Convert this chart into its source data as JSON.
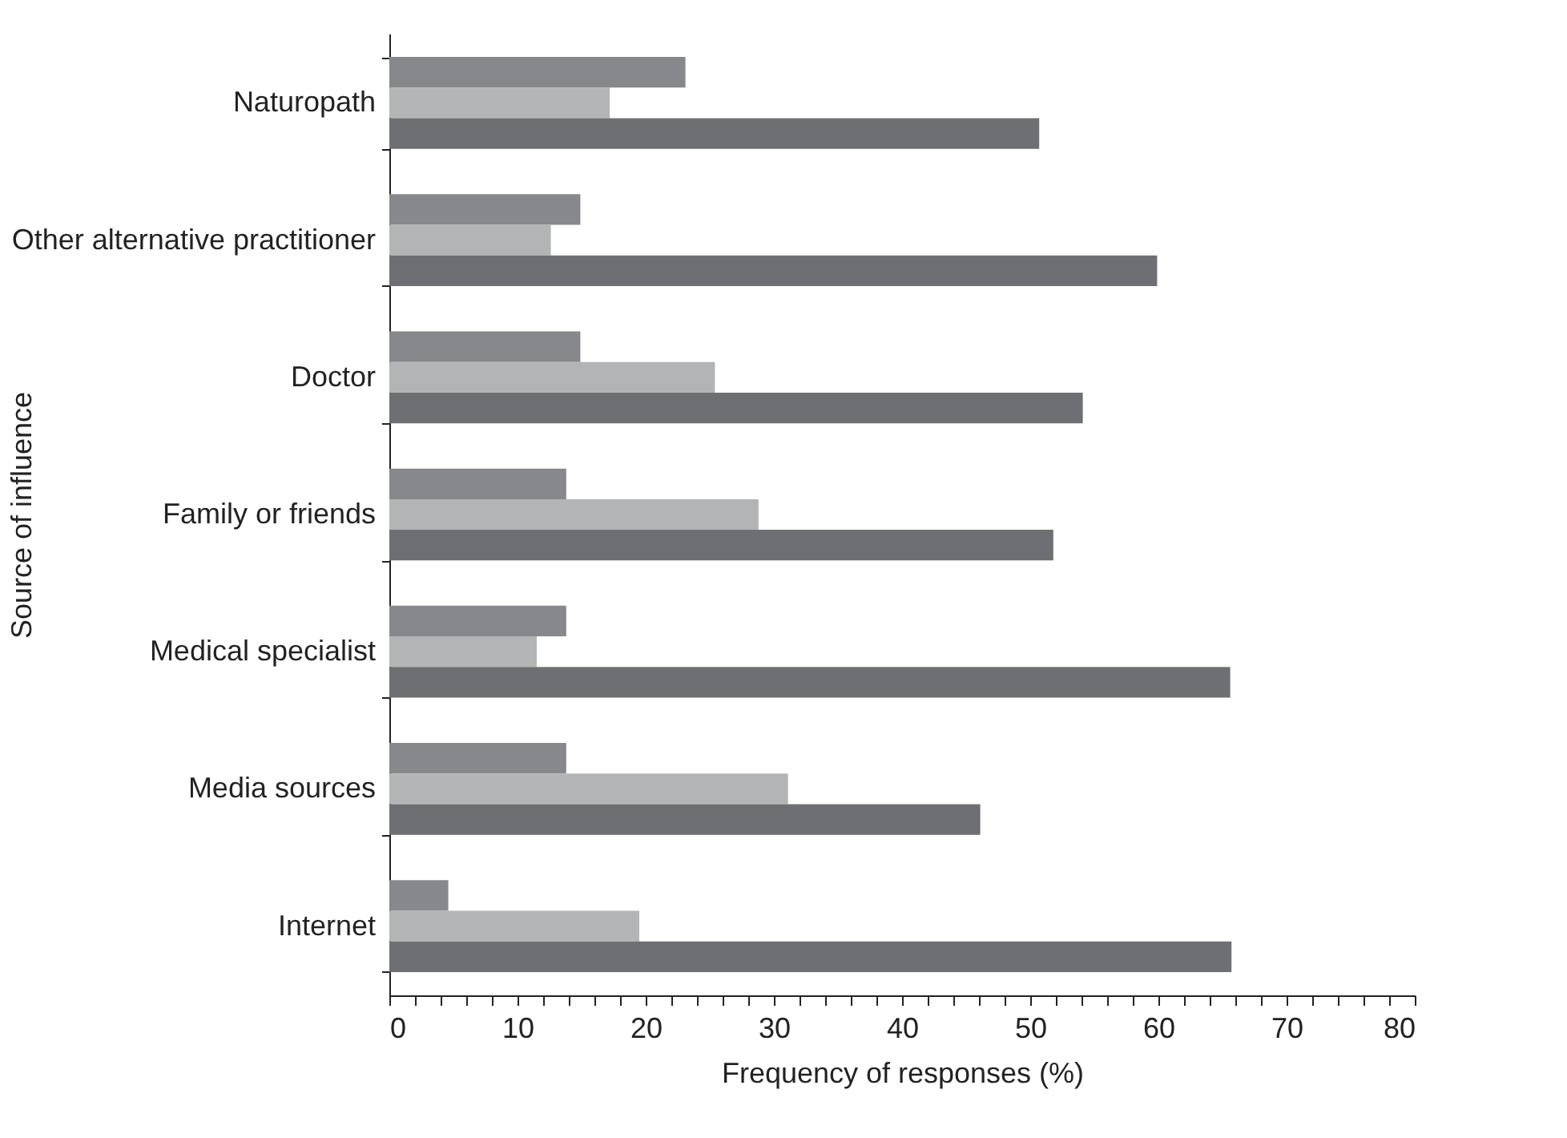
{
  "chart_data": {
    "type": "bar",
    "orientation": "horizontal",
    "xlabel": "Frequency of responses (%)",
    "ylabel": "Source of influence",
    "categories": [
      "Naturopath",
      "Other alternative practitioner",
      "Doctor",
      "Family or friends",
      "Medical specialist",
      "Media sources",
      "Internet"
    ],
    "series": [
      {
        "color": "#87888c",
        "values": [
          23.1,
          14.9,
          14.9,
          13.8,
          13.8,
          13.8,
          4.6
        ]
      },
      {
        "color": "#b3b4b6",
        "values": [
          17.2,
          12.6,
          25.4,
          28.8,
          11.5,
          31.1,
          19.5
        ]
      },
      {
        "color": "#6e6f73",
        "values": [
          50.7,
          59.9,
          54.1,
          51.8,
          65.6,
          46.1,
          65.7
        ]
      }
    ],
    "xlim": [
      0,
      80
    ],
    "xticks": [
      0,
      {
        "value": 2,
        "label": null
      },
      {
        "value": 4,
        "label": null
      },
      {
        "value": 6,
        "label": null
      },
      {
        "value": 8,
        "label": null
      },
      10,
      {
        "value": 12,
        "label": null
      },
      {
        "value": 14,
        "label": null
      },
      {
        "value": 16,
        "label": null
      },
      {
        "value": 18,
        "label": null
      },
      20,
      {
        "value": 22,
        "label": null
      },
      {
        "value": 24,
        "label": null
      },
      {
        "value": 26,
        "label": null
      },
      {
        "value": 28,
        "label": null
      },
      30,
      {
        "value": 32,
        "label": null
      },
      {
        "value": 34,
        "label": null
      },
      {
        "value": 36,
        "label": null
      },
      {
        "value": 38,
        "label": null
      },
      40,
      {
        "value": 42,
        "label": null
      },
      {
        "value": 44,
        "label": null
      },
      {
        "value": 46,
        "label": null
      },
      {
        "value": 48,
        "label": null
      },
      50,
      {
        "value": 52,
        "label": null
      },
      {
        "value": 54,
        "label": null
      },
      {
        "value": 56,
        "label": null
      },
      {
        "value": 58,
        "label": null
      },
      60,
      {
        "value": 62,
        "label": null
      },
      {
        "value": 64,
        "label": null
      },
      {
        "value": 66,
        "label": null
      },
      {
        "value": 68,
        "label": null
      },
      70,
      {
        "value": 72,
        "label": null
      },
      {
        "value": 74,
        "label": null
      },
      {
        "value": 76,
        "label": null
      },
      {
        "value": 78,
        "label": null
      },
      80
    ],
    "grid": false,
    "legend": false
  }
}
